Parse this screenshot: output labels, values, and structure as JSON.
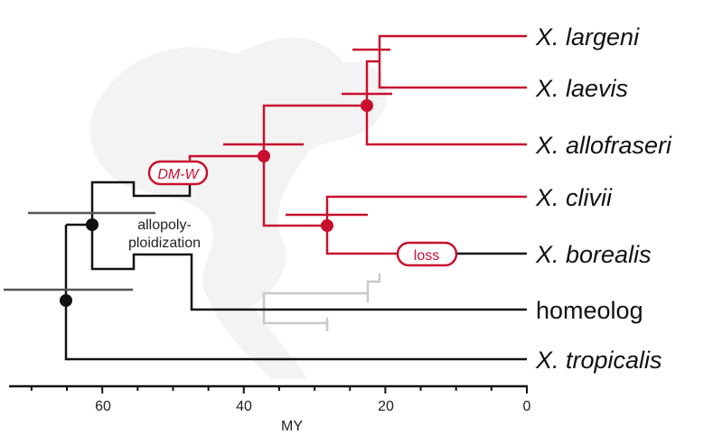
{
  "taxa": [
    "X. largeni",
    "X. laevis",
    "X. allofraseri",
    "X. clivii",
    "X. borealis",
    "homeolog",
    "X. tropicalis"
  ],
  "annotations": {
    "dmw": "DM-W",
    "loss": "loss",
    "allo_line1": "allopoly-",
    "allo_line2": "ploidization"
  },
  "axis": {
    "label": "MY",
    "ticks": [
      "60",
      "40",
      "20",
      "0"
    ]
  },
  "colors": {
    "accent": "#c8102e",
    "ink": "#111111",
    "homeolog_gray": "#c8c8c8"
  }
}
